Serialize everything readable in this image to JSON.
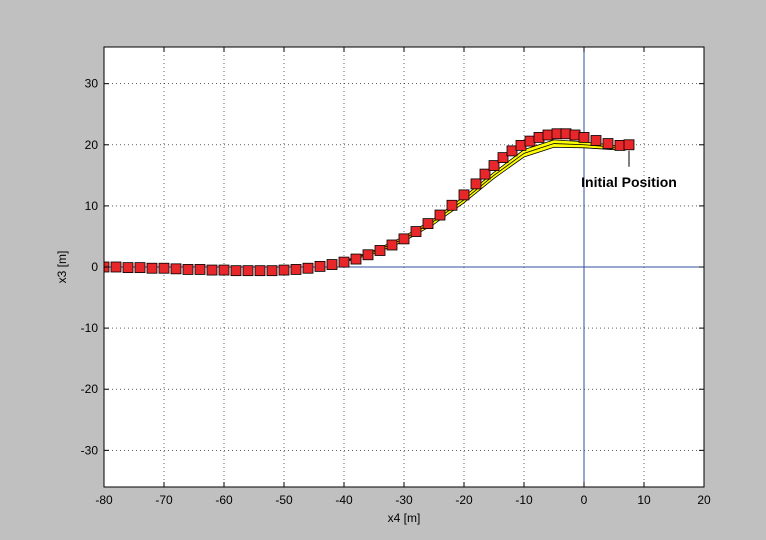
{
  "chart_data": {
    "type": "scatter",
    "title": "",
    "xlabel": "x4 [m]",
    "ylabel": "x3 [m]",
    "xlim": [
      -80,
      20
    ],
    "ylim": [
      -36,
      36
    ],
    "grid": true,
    "x_ticks": [
      -80,
      -70,
      -60,
      -50,
      -40,
      -30,
      -20,
      -10,
      0,
      10,
      20
    ],
    "y_ticks": [
      -30,
      -20,
      -10,
      0,
      10,
      20,
      30
    ],
    "reference_lines": {
      "x": 0,
      "y": 0
    },
    "annotation": {
      "text": "Initial Position",
      "x": 7.5,
      "y": 20
    },
    "colors": {
      "marker_fill": "#e8272a",
      "marker_edge": "#000000",
      "bundle_fill": "#ffff00",
      "bundle_edge": "#000000",
      "reference_line": "#2f4f9f",
      "grid": "#000000",
      "figure_background": "#c0c0c0",
      "axes_background": "#ffffff"
    },
    "marker_series": {
      "x": [
        -80,
        -78,
        -76,
        -74,
        -72,
        -70,
        -68,
        -66,
        -64,
        -62,
        -60,
        -58,
        -56,
        -54,
        -52,
        -50,
        -48,
        -46,
        -44,
        -42,
        -40,
        -38,
        -36,
        -34,
        -32,
        -30,
        -28,
        -26,
        -24,
        -22,
        -20,
        -18,
        -16.5,
        -15,
        -13.5,
        -12,
        -10.5,
        -9,
        -7.5,
        -6,
        -4.5,
        -3,
        -1.5,
        0,
        2,
        4,
        6,
        7.5
      ],
      "y": [
        0,
        0,
        -0.1,
        -0.1,
        -0.2,
        -0.2,
        -0.3,
        -0.4,
        -0.4,
        -0.5,
        -0.5,
        -0.6,
        -0.6,
        -0.6,
        -0.6,
        -0.5,
        -0.4,
        -0.2,
        0.1,
        0.4,
        0.8,
        1.3,
        2,
        2.7,
        3.6,
        4.6,
        5.8,
        7.1,
        8.5,
        10.1,
        11.8,
        13.6,
        15.2,
        16.6,
        17.9,
        19,
        19.9,
        20.6,
        21.2,
        21.6,
        21.8,
        21.8,
        21.6,
        21.2,
        20.7,
        20.2,
        19.9,
        20
      ]
    },
    "bundle_lines": [
      {
        "x": [
          -40,
          -35,
          -30,
          -25,
          -20,
          -15,
          -10,
          -5,
          0,
          5,
          7.5
        ],
        "y": [
          0.8,
          2.2,
          4.2,
          7,
          10.5,
          14.5,
          18,
          19.6,
          19.5,
          19.2,
          19.8
        ]
      },
      {
        "x": [
          -40,
          -35,
          -30,
          -25,
          -20,
          -15,
          -10,
          -5,
          0,
          5,
          7.5
        ],
        "y": [
          0.9,
          2.5,
          4.6,
          7.5,
          11,
          15,
          18.6,
          20.2,
          20,
          19.6,
          19.9
        ]
      },
      {
        "x": [
          -40,
          -35,
          -30,
          -25,
          -20,
          -15,
          -10,
          -5,
          0,
          5,
          7.5
        ],
        "y": [
          1,
          2.7,
          5,
          7.9,
          11.5,
          15.5,
          19.2,
          20.8,
          20.5,
          19.9,
          20
        ]
      }
    ]
  }
}
